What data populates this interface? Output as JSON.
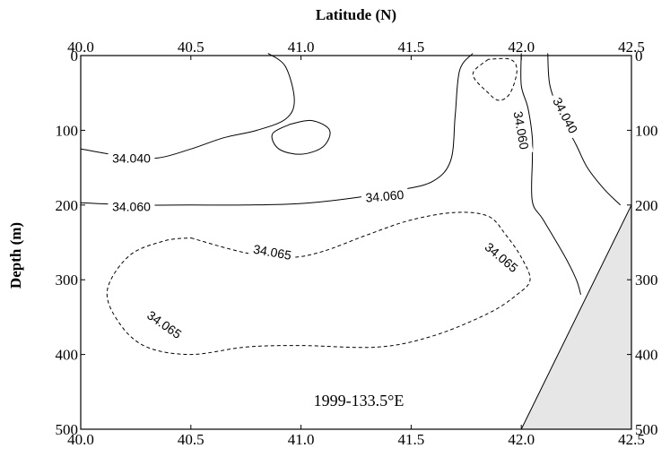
{
  "chart_data": {
    "type": "contour",
    "xlabel": "Latitude (N)",
    "ylabel": "Depth (m)",
    "xlim": [
      40.0,
      42.5
    ],
    "ylim": [
      500,
      0
    ],
    "x_ticks": [
      "40.0",
      "40.5",
      "41.0",
      "41.5",
      "42.0",
      "42.5"
    ],
    "y_ticks": [
      "0",
      "100",
      "200",
      "300",
      "400",
      "500"
    ],
    "annotation": "1999-133.5°E",
    "colors": {
      "line": "#000000",
      "bottom_fill": "#e6e6e6"
    },
    "contours": [
      {
        "level_label": "34.040",
        "style": "solid",
        "points": [
          [
            40.0,
            125
          ],
          [
            40.2,
            135
          ],
          [
            40.35,
            137
          ],
          [
            40.5,
            125
          ],
          [
            40.65,
            110
          ],
          [
            40.8,
            100
          ],
          [
            40.93,
            85
          ],
          [
            40.97,
            60
          ],
          [
            40.93,
            15
          ],
          [
            40.85,
            -3
          ]
        ]
      },
      {
        "level_label": "34.060",
        "style": "solid",
        "points": [
          [
            40.0,
            197
          ],
          [
            40.25,
            200
          ],
          [
            40.5,
            200
          ],
          [
            40.75,
            200
          ],
          [
            41.0,
            198
          ],
          [
            41.25,
            190
          ],
          [
            41.45,
            180
          ],
          [
            41.6,
            168
          ],
          [
            41.68,
            140
          ],
          [
            41.7,
            80
          ],
          [
            41.72,
            20
          ],
          [
            41.78,
            -3
          ]
        ]
      },
      {
        "level_label": "",
        "style": "solid",
        "points": [
          [
            40.95,
            92
          ],
          [
            40.87,
            105
          ],
          [
            40.9,
            125
          ],
          [
            41.0,
            132
          ],
          [
            41.1,
            122
          ],
          [
            41.13,
            100
          ],
          [
            41.05,
            87
          ],
          [
            40.95,
            92
          ]
        ]
      },
      {
        "level_label": "",
        "style": "dashed",
        "points": [
          [
            41.85,
            5
          ],
          [
            41.78,
            25
          ],
          [
            41.85,
            50
          ],
          [
            41.9,
            60
          ],
          [
            41.95,
            50
          ],
          [
            41.98,
            20
          ],
          [
            41.95,
            5
          ],
          [
            41.85,
            5
          ]
        ]
      },
      {
        "level_label": "34.060",
        "style": "solid",
        "points": [
          [
            42.0,
            -3
          ],
          [
            42.0,
            40
          ],
          [
            42.03,
            70
          ],
          [
            42.05,
            110
          ],
          [
            42.05,
            140
          ],
          [
            42.05,
            195
          ],
          [
            42.1,
            220
          ],
          [
            42.2,
            270
          ],
          [
            42.25,
            300
          ],
          [
            42.27,
            320
          ]
        ]
      },
      {
        "level_label": "34.040",
        "style": "solid",
        "points": [
          [
            42.12,
            -3
          ],
          [
            42.13,
            40
          ],
          [
            42.18,
            80
          ],
          [
            42.25,
            120
          ],
          [
            42.3,
            150
          ],
          [
            42.38,
            180
          ],
          [
            42.45,
            200
          ]
        ]
      },
      {
        "level_label": "34.065",
        "style": "dashed",
        "points": [
          [
            40.5,
            244
          ],
          [
            40.75,
            264
          ],
          [
            40.95,
            270
          ],
          [
            41.1,
            262
          ],
          [
            41.3,
            240
          ],
          [
            41.5,
            220
          ],
          [
            41.7,
            210
          ],
          [
            41.85,
            215
          ],
          [
            41.93,
            240
          ],
          [
            42.0,
            270
          ],
          [
            42.04,
            300
          ],
          [
            41.98,
            320
          ],
          [
            41.85,
            345
          ],
          [
            41.6,
            375
          ],
          [
            41.35,
            390
          ],
          [
            41.0,
            388
          ],
          [
            40.75,
            390
          ],
          [
            40.5,
            400
          ],
          [
            40.3,
            390
          ],
          [
            40.18,
            360
          ],
          [
            40.12,
            315
          ],
          [
            40.22,
            268
          ],
          [
            40.38,
            248
          ],
          [
            40.5,
            244
          ]
        ]
      }
    ],
    "contour_labels": [
      {
        "text": "34.040",
        "lat": 40.23,
        "depth": 137,
        "angle": 0
      },
      {
        "text": "34.060",
        "lat": 40.23,
        "depth": 202,
        "angle": 0
      },
      {
        "text": "34.060",
        "lat": 41.38,
        "depth": 188,
        "angle": -5
      },
      {
        "text": "34.060",
        "lat": 42.0,
        "depth": 100,
        "angle": 80
      },
      {
        "text": "34.040",
        "lat": 42.2,
        "depth": 80,
        "angle": 62
      },
      {
        "text": "34.065",
        "lat": 40.87,
        "depth": 263,
        "angle": 10
      },
      {
        "text": "34.065",
        "lat": 41.91,
        "depth": 270,
        "angle": 40
      },
      {
        "text": "34.065",
        "lat": 40.38,
        "depth": 360,
        "angle": 35
      }
    ],
    "bottom_polygon": [
      [
        42.0,
        500
      ],
      [
        42.5,
        500
      ],
      [
        42.5,
        200
      ]
    ]
  }
}
